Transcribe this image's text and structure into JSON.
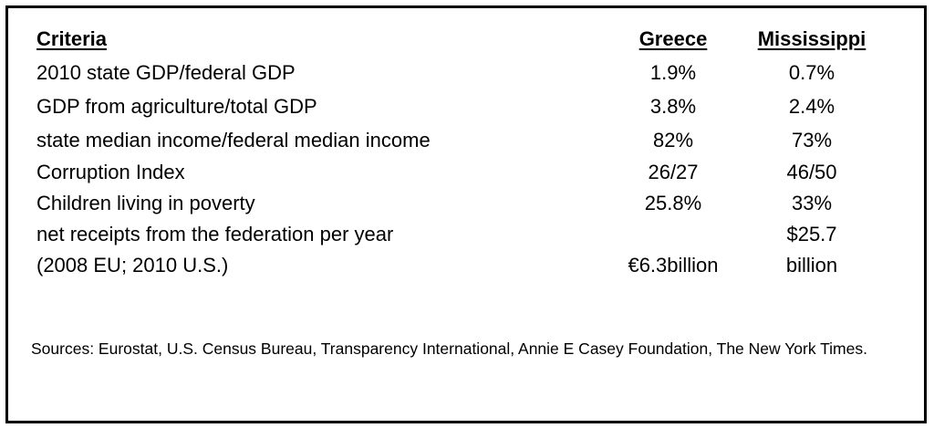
{
  "table": {
    "headers": [
      "Criteria",
      "Greece",
      "Mississippi"
    ],
    "rows": [
      {
        "criteria": "2010 state GDP/federal GDP",
        "greece": "1.9%",
        "mississippi": "0.7%"
      },
      {
        "criteria": "GDP from agriculture/total GDP",
        "greece": "3.8%",
        "mississippi": "2.4%"
      },
      {
        "criteria": "state median income/federal median income",
        "greece": "82%",
        "mississippi": "73%"
      },
      {
        "criteria": "Corruption Index",
        "greece": "26/27",
        "mississippi": "46/50"
      },
      {
        "criteria": "Children living in poverty",
        "greece": "25.8%",
        "mississippi": "33%"
      },
      {
        "criteria": "net receipts from the federation  per year",
        "greece": "",
        "mississippi": "$25.7"
      },
      {
        "criteria": "(2008 EU; 2010 U.S.)",
        "greece": "€6.3billion",
        "mississippi": "billion"
      }
    ]
  },
  "sources": "Sources:  Eurostat, U.S. Census Bureau, Transparency International, Annie E Casey Foundation, The New York Times."
}
